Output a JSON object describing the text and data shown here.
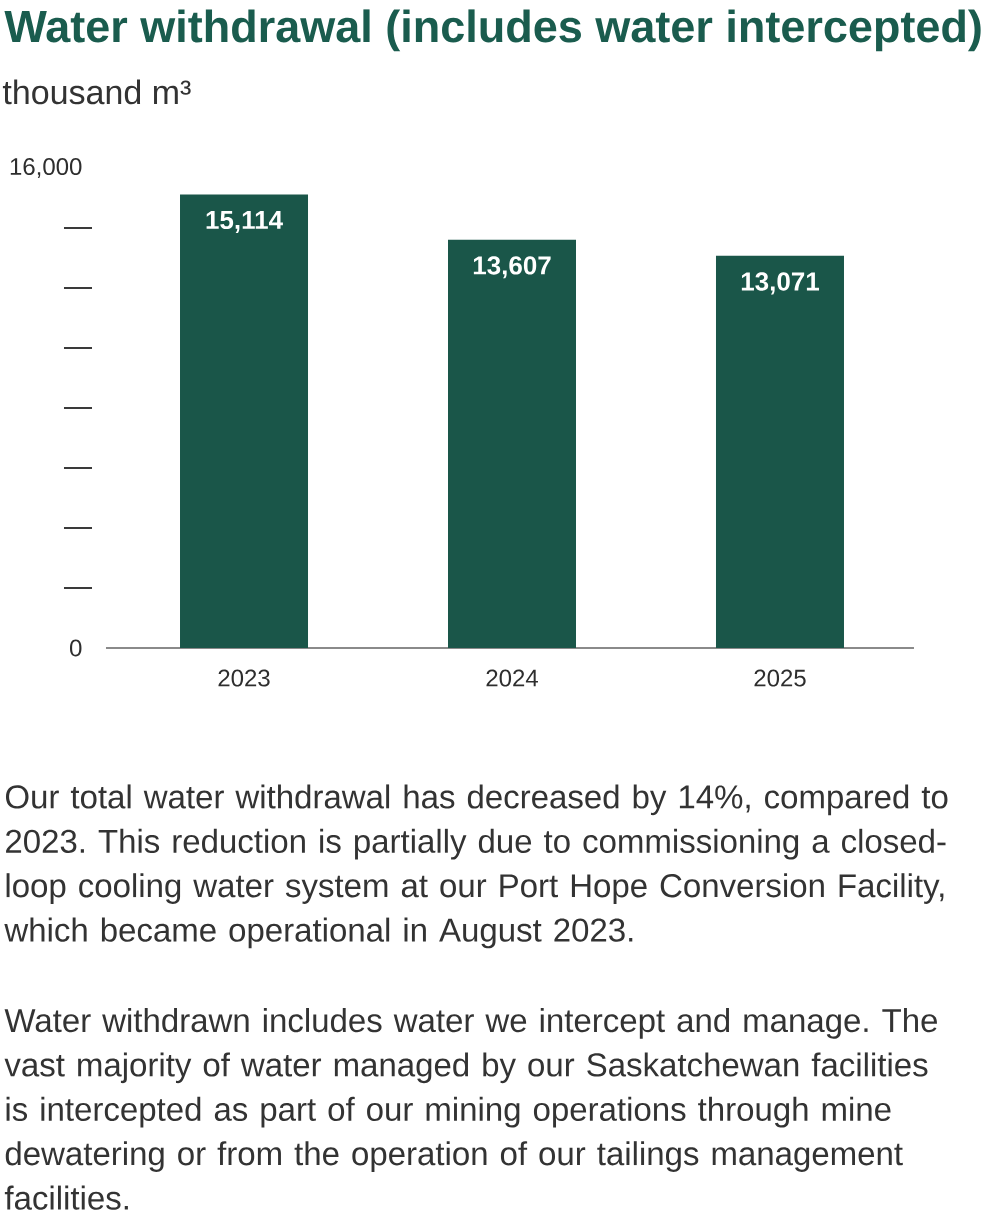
{
  "chart_data": {
    "type": "bar",
    "title": "Water withdrawal (includes water intercepted)",
    "subtitle": "thousand m³",
    "categories": [
      "2023",
      "2024",
      "2025"
    ],
    "values": [
      15114,
      13607,
      13071
    ],
    "color": "#1a5649",
    "value_labels": [
      "15,114",
      "13,607",
      "13,071"
    ],
    "ylim": [
      0,
      16000
    ],
    "yticks": [
      0,
      {
        "value": 2000,
        "label": null
      },
      {
        "value": 4000,
        "label": null
      },
      {
        "value": 6000,
        "label": null
      },
      {
        "value": 8000,
        "label": null
      },
      {
        "value": 10000,
        "label": null
      },
      {
        "value": 12000,
        "label": null
      },
      {
        "value": 14000,
        "label": null
      },
      {
        "value": 16000,
        "label": "16,000"
      }
    ],
    "annotations": [
      "Our total water withdrawal has decreased by 14%, compared to 2023. This reduction is partially due to commissioning a closed-loop cooling water system at our Port Hope Conversion Facility, which became operational in August 2023.",
      "Water withdrawn includes water we intercept and manage. The vast majority of water managed by our Saskatchewan facilities is intercepted as part of our mining operations through mine dewatering or from the operation of our tailings management facilities."
    ]
  }
}
